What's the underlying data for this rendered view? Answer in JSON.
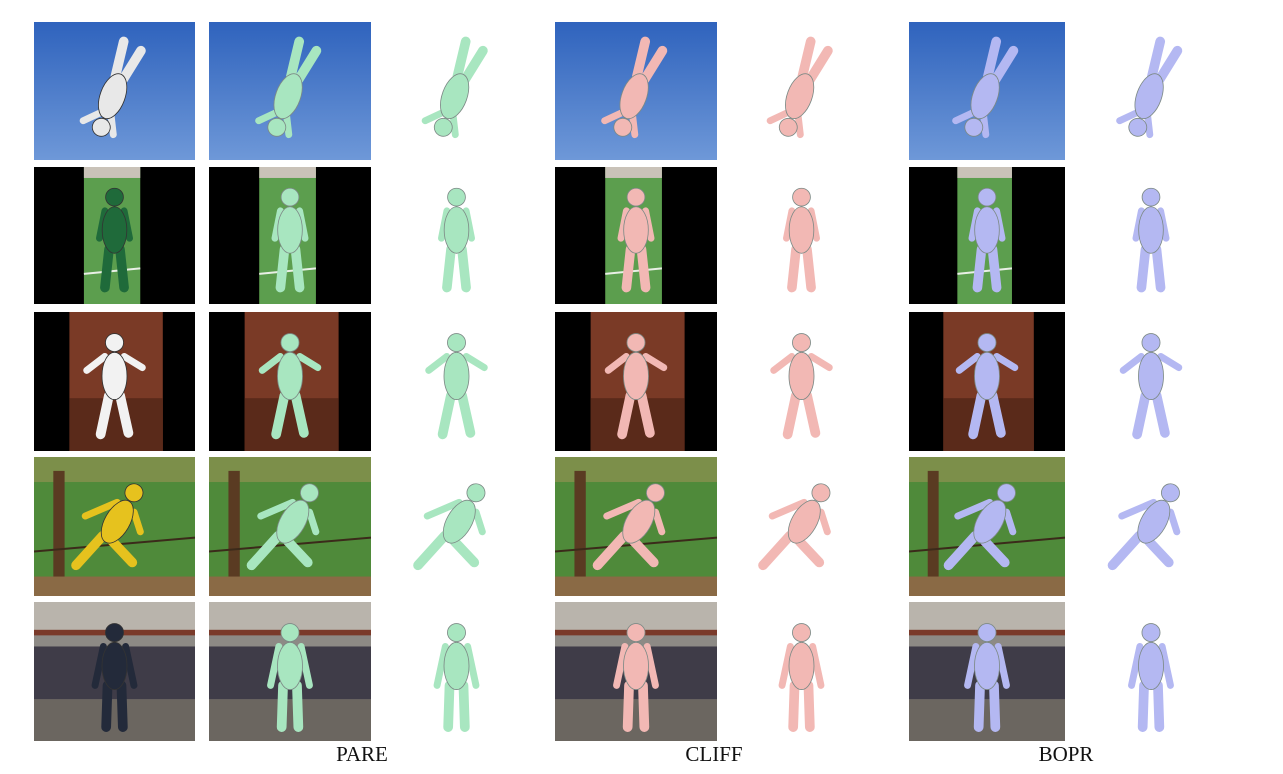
{
  "figure": {
    "methods": [
      {
        "label": "PARE",
        "mesh_color": "#a8e6c0"
      },
      {
        "label": "CLIFF",
        "mesh_color": "#f2b8b4"
      },
      {
        "label": "BOPR",
        "mesh_color": "#b4b8f2"
      }
    ],
    "rows": [
      {
        "scene": "handstand",
        "background": "sky"
      },
      {
        "scene": "tennis-official",
        "background": "grass"
      },
      {
        "scene": "tennis-serve",
        "background": "court"
      },
      {
        "scene": "fence-lean",
        "background": "garden"
      },
      {
        "scene": "street-walk",
        "background": "street"
      }
    ],
    "colors": {
      "sky": "#3f73c7",
      "grass": "#5c9e4e",
      "court": "#7a3a26",
      "garden": "#4f8a3a",
      "street": "#6b6660",
      "black": "#000000"
    }
  }
}
